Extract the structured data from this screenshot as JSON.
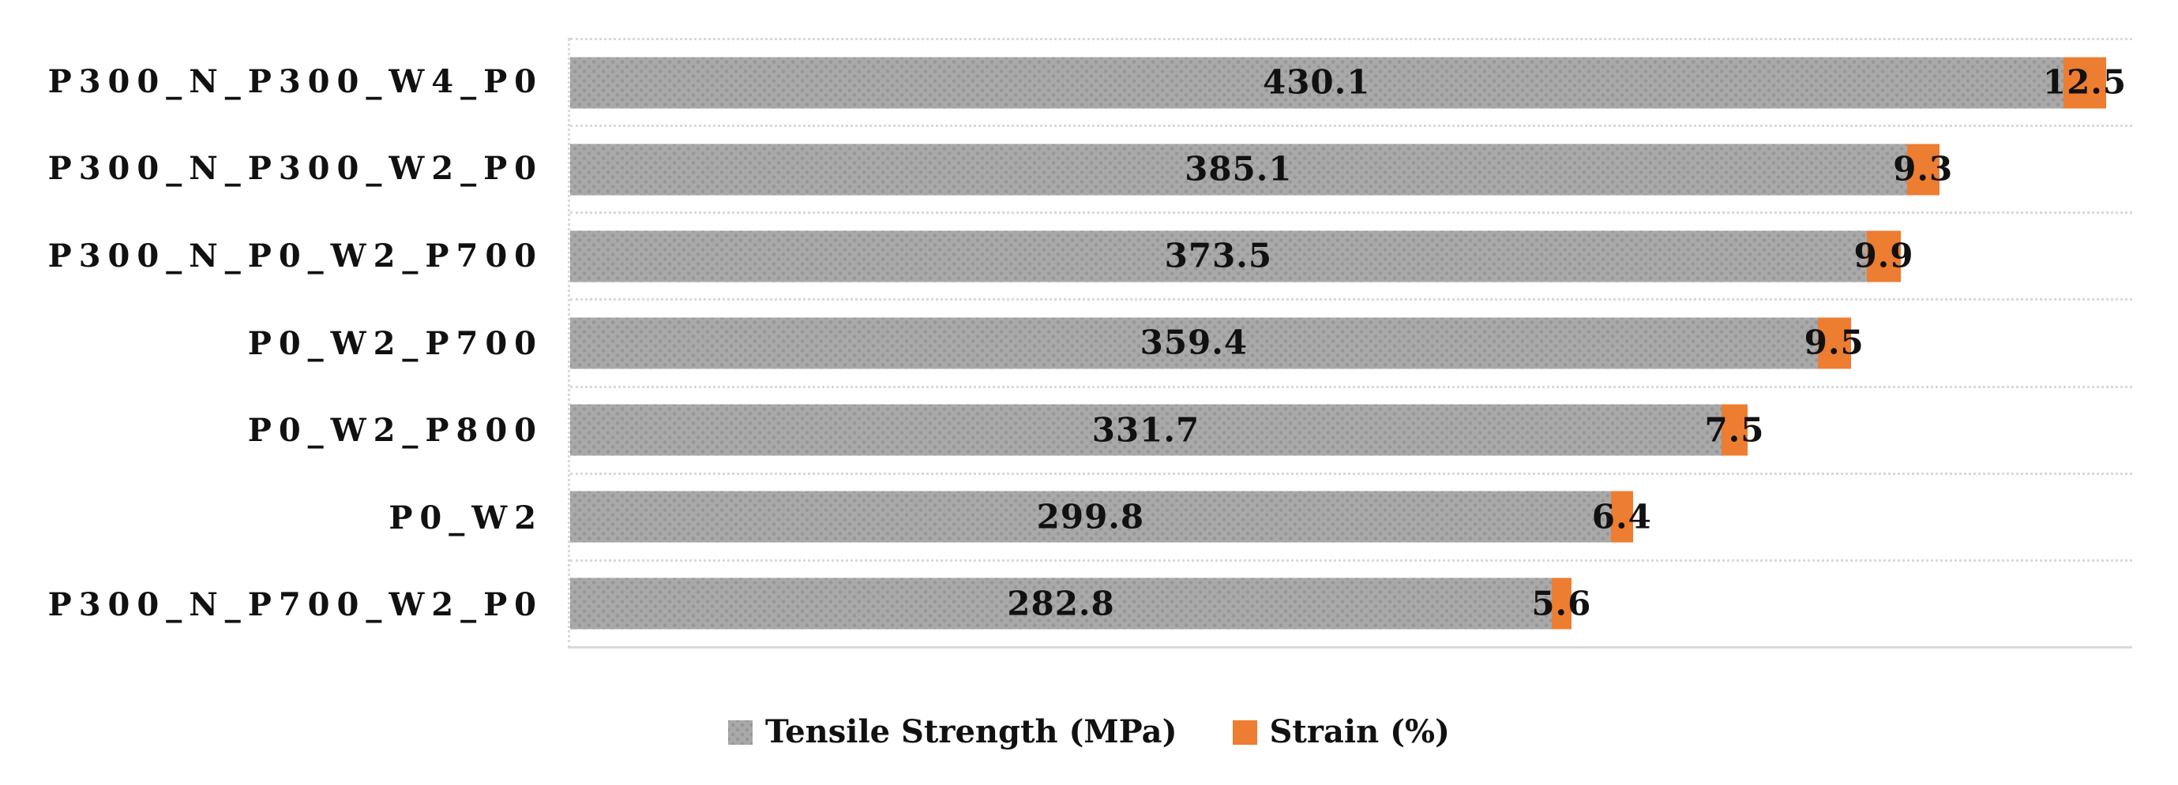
{
  "chart_data": {
    "type": "bar",
    "orientation": "horizontal",
    "stacked": true,
    "title": "",
    "xlabel": "",
    "ylabel": "",
    "xlim": [
      0,
      450
    ],
    "grid": "dotted category separators, light gray",
    "legend_position": "bottom-center",
    "categories": [
      "P300_N_P300_W4_P0",
      "P300_N_P300_W2_P0",
      "P300_N_P0_W2_P700",
      "P0_W2_P700",
      "P0_W2_P800",
      "P0_W2",
      "P300_N_P700_W2_P0"
    ],
    "series": [
      {
        "name": "Tensile Strength (MPa)",
        "color": "#a9a9a9",
        "values": [
          430.1,
          385.1,
          373.5,
          359.4,
          331.7,
          299.8,
          282.8
        ],
        "labels": [
          "430.1",
          "385.1",
          "373.5",
          "359.4",
          "331.7",
          "299.8",
          "282.8"
        ]
      },
      {
        "name": "Strain (%)",
        "color": "#ed7d31",
        "values": [
          12.5,
          9.3,
          9.9,
          9.5,
          7.5,
          6.4,
          5.6
        ],
        "labels": [
          "12.5",
          "9.3",
          "9.9",
          "9.5",
          "7.5",
          "6.4",
          "5.6"
        ]
      }
    ]
  },
  "legend": {
    "items": [
      {
        "label": "Tensile Strength (MPa)",
        "color": "#a9a9a9"
      },
      {
        "label": "Strain (%)",
        "color": "#ed7d31"
      }
    ]
  },
  "colors": {
    "tensile_bar": "#a9a9a9",
    "tensile_bar_dots": "#979797",
    "strain_bar": "#ed7d31",
    "gridline": "#d9d9d9",
    "text": "#111111",
    "background": "#ffffff"
  }
}
